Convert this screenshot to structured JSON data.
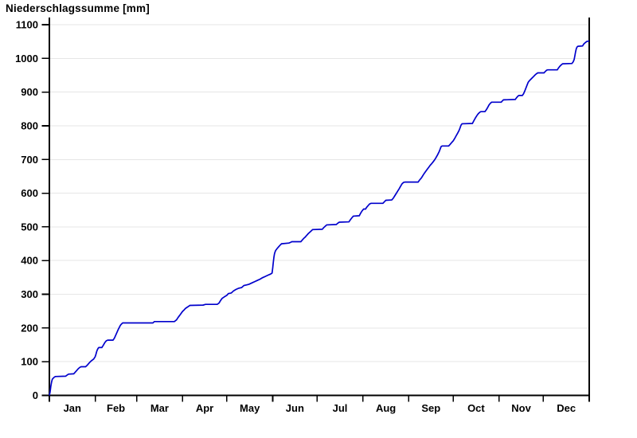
{
  "title": "Niederschlagssumme [mm]",
  "colors": {
    "line": "#0000cc",
    "grid": "#e6e6e6",
    "axis": "#000000",
    "background": "#ffffff"
  },
  "chart_data": {
    "type": "line",
    "title": "Niederschlagssumme [mm]",
    "xlabel": "",
    "ylabel": "Niederschlagssumme [mm]",
    "legend": "none",
    "grid": "horizontal",
    "x_unit": "day_of_year",
    "xlim_days": [
      0,
      365
    ],
    "ylim": [
      0,
      1100
    ],
    "y_ticks": [
      0,
      100,
      200,
      300,
      400,
      500,
      600,
      700,
      800,
      900,
      1000,
      1100
    ],
    "x_tick_labels": [
      "Jan",
      "Feb",
      "Mar",
      "Apr",
      "May",
      "Jun",
      "Jul",
      "Aug",
      "Sep",
      "Oct",
      "Nov",
      "Dec"
    ],
    "month_boundaries_days": [
      0,
      31,
      59,
      90,
      120,
      151,
      181,
      212,
      243,
      273,
      304,
      334,
      365
    ],
    "series": [
      {
        "name": "cumulative-precipitation-mm",
        "points": [
          [
            0,
            0
          ],
          [
            0.5,
            10
          ],
          [
            1,
            28
          ],
          [
            1.5,
            40
          ],
          [
            2,
            48
          ],
          [
            3,
            53
          ],
          [
            4,
            56
          ],
          [
            11,
            57
          ],
          [
            12.2,
            61
          ],
          [
            13,
            63
          ],
          [
            16.5,
            64
          ],
          [
            17.5,
            69
          ],
          [
            18.5,
            74
          ],
          [
            19.5,
            79
          ],
          [
            20.5,
            83
          ],
          [
            21.5,
            85
          ],
          [
            24.5,
            85
          ],
          [
            25.5,
            89
          ],
          [
            26.5,
            94
          ],
          [
            27.5,
            99
          ],
          [
            28.5,
            103
          ],
          [
            30,
            108
          ],
          [
            31,
            115
          ],
          [
            31.5,
            122
          ],
          [
            32,
            130
          ],
          [
            32.5,
            136
          ],
          [
            33,
            140
          ],
          [
            33.5,
            142
          ],
          [
            35.5,
            142
          ],
          [
            36.5,
            149
          ],
          [
            37.5,
            157
          ],
          [
            38.5,
            162
          ],
          [
            39.5,
            164
          ],
          [
            43,
            164
          ],
          [
            44,
            170
          ],
          [
            44.8,
            178
          ],
          [
            45.6,
            186
          ],
          [
            46.4,
            194
          ],
          [
            47.2,
            201
          ],
          [
            48,
            208
          ],
          [
            48.8,
            212
          ],
          [
            49.6,
            215
          ],
          [
            62,
            215
          ],
          [
            70,
            215
          ],
          [
            71,
            219
          ],
          [
            84.5,
            219
          ],
          [
            86,
            224
          ],
          [
            87,
            231
          ],
          [
            88,
            237
          ],
          [
            89,
            243
          ],
          [
            90,
            249
          ],
          [
            91,
            253
          ],
          [
            92,
            258
          ],
          [
            93,
            261
          ],
          [
            94,
            264
          ],
          [
            95,
            267
          ],
          [
            104,
            268
          ],
          [
            105.5,
            270
          ],
          [
            113.5,
            270
          ],
          [
            114.7,
            274
          ],
          [
            115.8,
            282
          ],
          [
            116.8,
            288
          ],
          [
            117.8,
            291
          ],
          [
            118.8,
            294
          ],
          [
            120,
            297
          ],
          [
            121,
            302
          ],
          [
            123,
            304
          ],
          [
            124.5,
            310
          ],
          [
            126,
            314
          ],
          [
            128,
            318
          ],
          [
            130,
            320
          ],
          [
            131.5,
            326
          ],
          [
            133.5,
            328
          ],
          [
            135,
            330
          ],
          [
            137,
            334
          ],
          [
            139,
            338
          ],
          [
            140.5,
            341
          ],
          [
            142.5,
            345
          ],
          [
            144,
            349
          ],
          [
            146,
            353
          ],
          [
            148,
            357
          ],
          [
            149.5,
            360
          ],
          [
            150.6,
            363
          ],
          [
            151,
            378
          ],
          [
            151.4,
            394
          ],
          [
            151.8,
            410
          ],
          [
            152.2,
            420
          ],
          [
            152.6,
            426
          ],
          [
            153,
            430
          ],
          [
            154,
            436
          ],
          [
            155,
            441
          ],
          [
            156,
            446
          ],
          [
            157,
            450
          ],
          [
            162,
            452
          ],
          [
            163,
            454
          ],
          [
            164,
            456
          ],
          [
            170,
            456
          ],
          [
            171,
            461
          ],
          [
            172,
            466
          ],
          [
            173,
            470
          ],
          [
            174,
            475
          ],
          [
            175,
            480
          ],
          [
            176,
            484
          ],
          [
            177,
            488
          ],
          [
            178,
            492
          ],
          [
            184.5,
            493
          ],
          [
            185.5,
            498
          ],
          [
            186.5,
            502
          ],
          [
            187.5,
            506
          ],
          [
            194,
            507
          ],
          [
            195,
            511
          ],
          [
            196,
            514
          ],
          [
            202.5,
            515
          ],
          [
            203.5,
            521
          ],
          [
            204.5,
            527
          ],
          [
            205.5,
            532
          ],
          [
            209.5,
            533
          ],
          [
            210.5,
            541
          ],
          [
            211.5,
            548
          ],
          [
            212.5,
            553
          ],
          [
            213.8,
            553
          ],
          [
            214.5,
            558
          ],
          [
            215.5,
            563
          ],
          [
            216.5,
            568
          ],
          [
            217.5,
            570
          ],
          [
            225.5,
            570
          ],
          [
            226.6,
            575
          ],
          [
            227.5,
            579
          ],
          [
            231.5,
            580
          ],
          [
            232.5,
            585
          ],
          [
            233.5,
            592
          ],
          [
            234.5,
            599
          ],
          [
            235.5,
            606
          ],
          [
            236.5,
            613
          ],
          [
            237.5,
            621
          ],
          [
            238.5,
            628
          ],
          [
            239.5,
            632
          ],
          [
            240.5,
            633
          ],
          [
            249.3,
            633
          ],
          [
            250.3,
            639
          ],
          [
            251.5,
            645
          ],
          [
            252.5,
            652
          ],
          [
            253.5,
            659
          ],
          [
            254.5,
            665
          ],
          [
            255.5,
            671
          ],
          [
            256.5,
            677
          ],
          [
            257.5,
            683
          ],
          [
            258.5,
            688
          ],
          [
            259.5,
            693
          ],
          [
            260.5,
            699
          ],
          [
            261.5,
            706
          ],
          [
            262.5,
            714
          ],
          [
            263.5,
            723
          ],
          [
            264.2,
            731
          ],
          [
            264.8,
            738
          ],
          [
            265.5,
            740
          ],
          [
            270,
            740
          ],
          [
            271,
            745
          ],
          [
            272,
            750
          ],
          [
            273,
            755
          ],
          [
            274,
            762
          ],
          [
            275,
            770
          ],
          [
            276,
            778
          ],
          [
            277,
            786
          ],
          [
            277.7,
            794
          ],
          [
            278.3,
            802
          ],
          [
            279,
            806
          ],
          [
            286,
            807
          ],
          [
            287,
            815
          ],
          [
            288,
            823
          ],
          [
            289,
            830
          ],
          [
            290,
            836
          ],
          [
            291,
            840
          ],
          [
            291.7,
            842
          ],
          [
            294.5,
            842
          ],
          [
            295.5,
            848
          ],
          [
            296.4,
            855
          ],
          [
            297.3,
            862
          ],
          [
            298.2,
            867
          ],
          [
            299,
            870
          ],
          [
            305.5,
            870
          ],
          [
            306.3,
            874
          ],
          [
            307,
            877
          ],
          [
            315,
            878
          ],
          [
            316,
            884
          ],
          [
            316.8,
            888
          ],
          [
            317.5,
            890
          ],
          [
            319.8,
            890
          ],
          [
            320.6,
            895
          ],
          [
            321.4,
            903
          ],
          [
            322.2,
            912
          ],
          [
            323,
            921
          ],
          [
            323.7,
            929
          ],
          [
            324.6,
            934
          ],
          [
            325.5,
            938
          ],
          [
            326.4,
            942
          ],
          [
            327.3,
            946
          ],
          [
            328.2,
            950
          ],
          [
            329.2,
            954
          ],
          [
            330.2,
            957
          ],
          [
            334.4,
            957
          ],
          [
            335.3,
            961
          ],
          [
            336.2,
            965
          ],
          [
            337,
            966
          ],
          [
            343.4,
            966
          ],
          [
            344.3,
            972
          ],
          [
            345.2,
            977
          ],
          [
            346.1,
            981
          ],
          [
            347,
            984
          ],
          [
            353.3,
            985
          ],
          [
            354.2,
            990
          ],
          [
            354.8,
            997
          ],
          [
            355.3,
            1008
          ],
          [
            355.8,
            1020
          ],
          [
            356.3,
            1029
          ],
          [
            356.8,
            1034
          ],
          [
            357.4,
            1036
          ],
          [
            360.5,
            1037
          ],
          [
            361.4,
            1043
          ],
          [
            362.4,
            1047
          ],
          [
            363.3,
            1050
          ],
          [
            365,
            1052
          ]
        ]
      }
    ]
  }
}
